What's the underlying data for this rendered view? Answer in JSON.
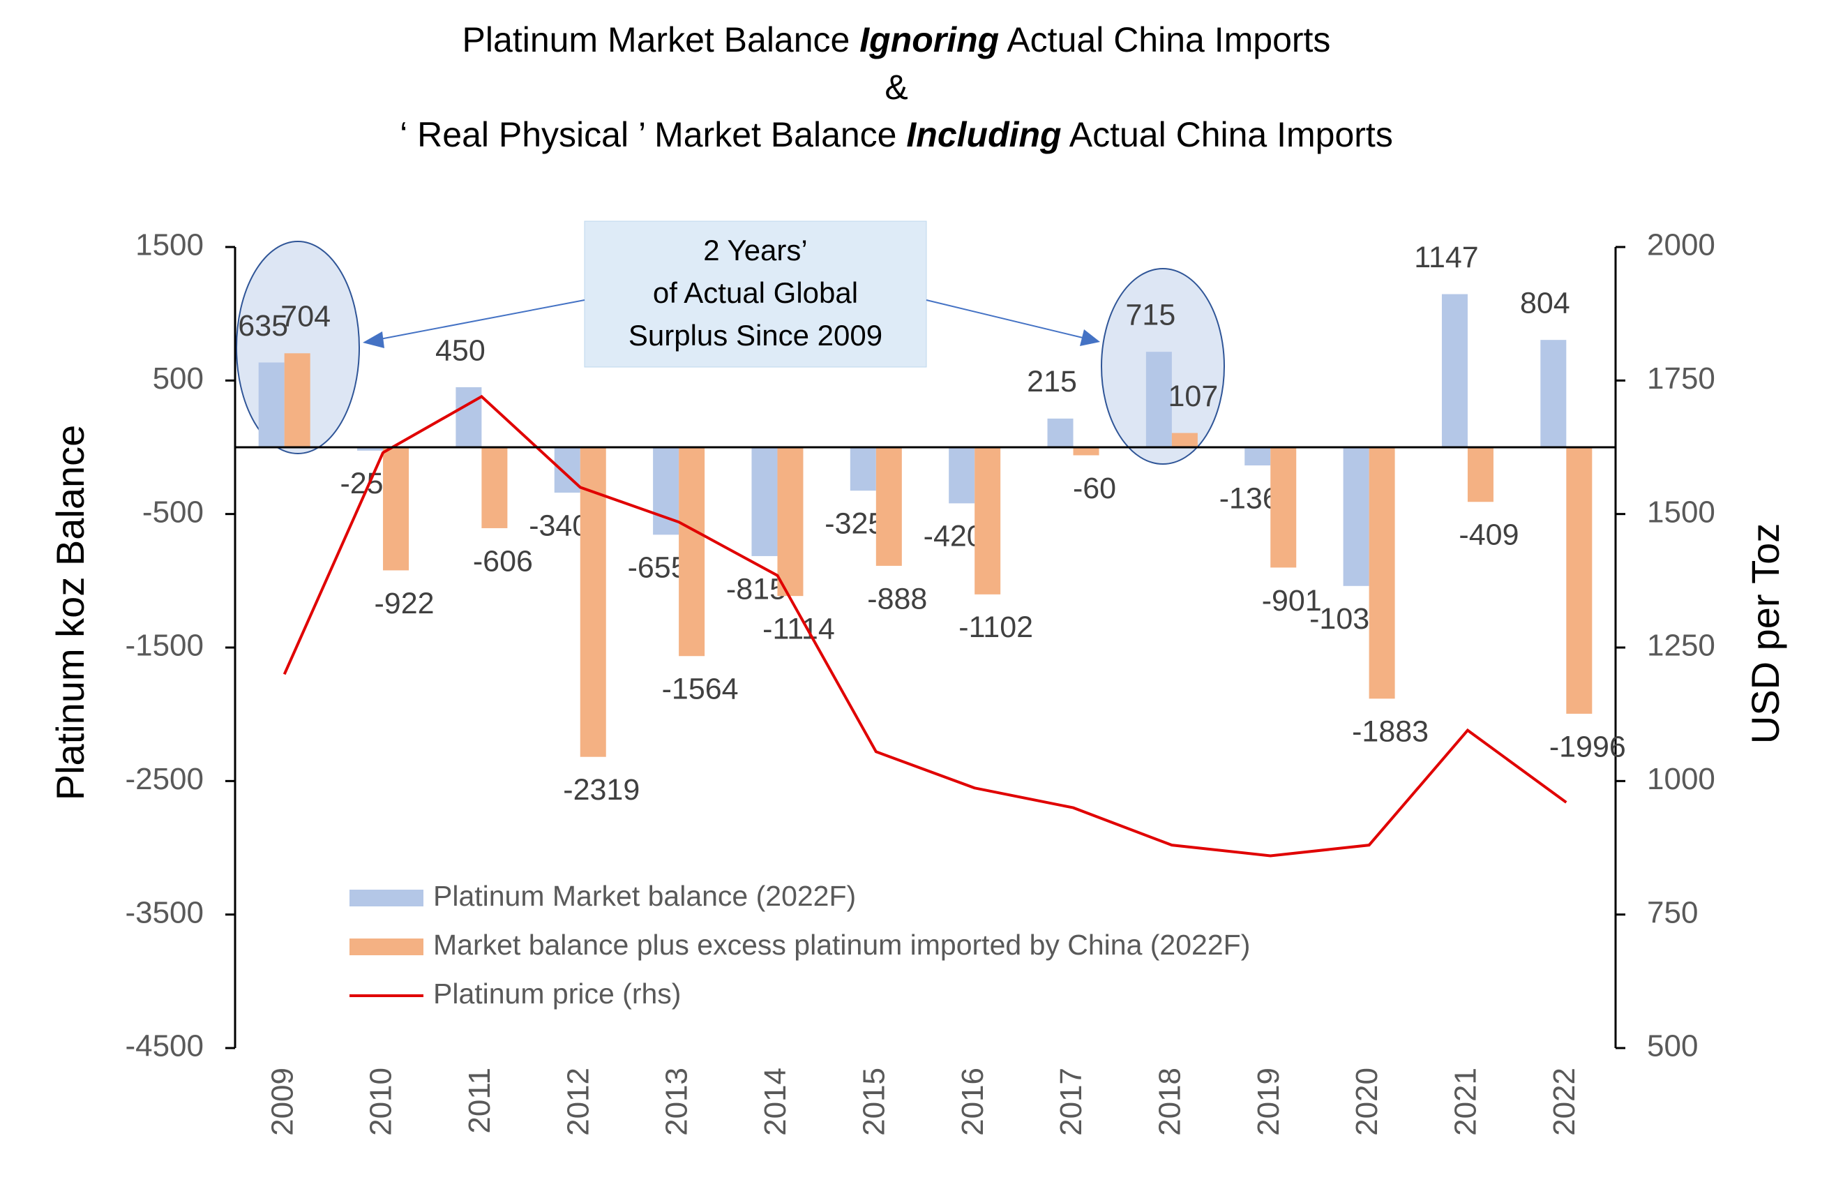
{
  "chart_data": {
    "type": "bar",
    "title": [
      [
        "Platinum Market Balance ",
        "Ignoring",
        " Actual China Imports"
      ],
      [
        "&"
      ],
      [
        "‘ Real Physical ’ Market Balance ",
        "Including",
        " Actual China Imports"
      ]
    ],
    "annotation": [
      "2 Years’",
      "of Actual Global",
      "Surplus Since 2009"
    ],
    "ylabel": "Platinum koz Balance",
    "y2label": "USD per Toz",
    "categories": [
      "2009",
      "2010",
      "2011",
      "2012",
      "2013",
      "2014",
      "2015",
      "2016",
      "2017",
      "2018",
      "2019",
      "2020",
      "2021",
      "2022"
    ],
    "series": [
      {
        "name": "Platinum Market balance (2022F)",
        "type": "bar",
        "color": "#b4c7e7",
        "values": [
          635,
          -25,
          450,
          -340,
          -655,
          -815,
          -325,
          -420,
          215,
          715,
          -136,
          -1039,
          1147,
          804
        ]
      },
      {
        "name": "Market balance plus excess platinum imported by China (2022F)",
        "type": "bar",
        "color": "#f4b183",
        "values": [
          704,
          -922,
          -606,
          -2319,
          -1564,
          -1114,
          -888,
          -1102,
          -60,
          107,
          -901,
          -1883,
          -409,
          -1996
        ]
      },
      {
        "name": "Platinum price (rhs)",
        "type": "line",
        "axis": "y2",
        "color": "#e00000",
        "values": [
          1200,
          1615,
          1720,
          1550,
          1485,
          1385,
          1055,
          987,
          950,
          880,
          860,
          880,
          1095,
          960
        ]
      }
    ],
    "ylim": [
      -4500,
      1500
    ],
    "yticks": [
      -4500,
      -3500,
      -2500,
      -1500,
      -500,
      500,
      1500
    ],
    "y2lim": [
      500,
      2000
    ],
    "y2ticks": [
      500,
      750,
      1000,
      1250,
      1500,
      1750,
      2000
    ]
  }
}
